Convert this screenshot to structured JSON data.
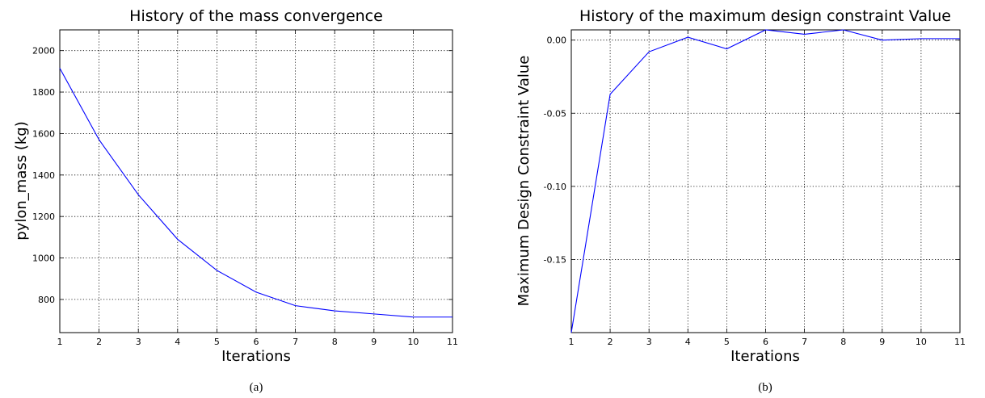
{
  "chart_data": [
    {
      "type": "line",
      "title": "History of the mass convergence",
      "xlabel": "Iterations",
      "ylabel": "pylon_mass (kg)",
      "caption": "(a)",
      "x": [
        1,
        2,
        3,
        4,
        5,
        6,
        7,
        8,
        9,
        10,
        11
      ],
      "xlim": [
        1,
        11
      ],
      "ylim": [
        640,
        2100
      ],
      "xticks": [
        1,
        2,
        3,
        4,
        5,
        6,
        7,
        8,
        9,
        10,
        11
      ],
      "yticks": [
        800,
        1000,
        1200,
        1400,
        1600,
        1800,
        2000
      ],
      "xtick_labels": [
        "1",
        "2",
        "3",
        "4",
        "5",
        "6",
        "7",
        "8",
        "9",
        "10",
        "11"
      ],
      "ytick_labels": [
        "800",
        "1000",
        "1200",
        "1400",
        "1600",
        "1800",
        "2000"
      ],
      "grid": true,
      "color": "#0000ff",
      "series": [
        {
          "values": [
            1915,
            1570,
            1305,
            1090,
            940,
            835,
            770,
            745,
            730,
            715,
            715
          ]
        }
      ]
    },
    {
      "type": "line",
      "title": "History of the maximum design constraint Value",
      "xlabel": "Iterations",
      "ylabel": "Maximum Design Constraint Value",
      "caption": "(b)",
      "x": [
        1,
        2,
        3,
        4,
        5,
        6,
        7,
        8,
        9,
        10,
        11
      ],
      "xlim": [
        1,
        11
      ],
      "ylim": [
        -0.2,
        0.007
      ],
      "xticks": [
        1,
        2,
        3,
        4,
        5,
        6,
        7,
        8,
        9,
        10,
        11
      ],
      "yticks": [
        -0.15,
        -0.1,
        -0.05,
        0.0
      ],
      "xtick_labels": [
        "1",
        "2",
        "3",
        "4",
        "5",
        "6",
        "7",
        "8",
        "9",
        "10",
        "11"
      ],
      "ytick_labels": [
        "-0.15",
        "-0.10",
        "-0.05",
        "0.00"
      ],
      "grid": true,
      "color": "#0000ff",
      "series": [
        {
          "values": [
            -0.2,
            -0.037,
            -0.008,
            0.002,
            -0.006,
            0.007,
            0.004,
            0.007,
            0.0,
            0.001,
            0.001
          ]
        }
      ]
    }
  ]
}
